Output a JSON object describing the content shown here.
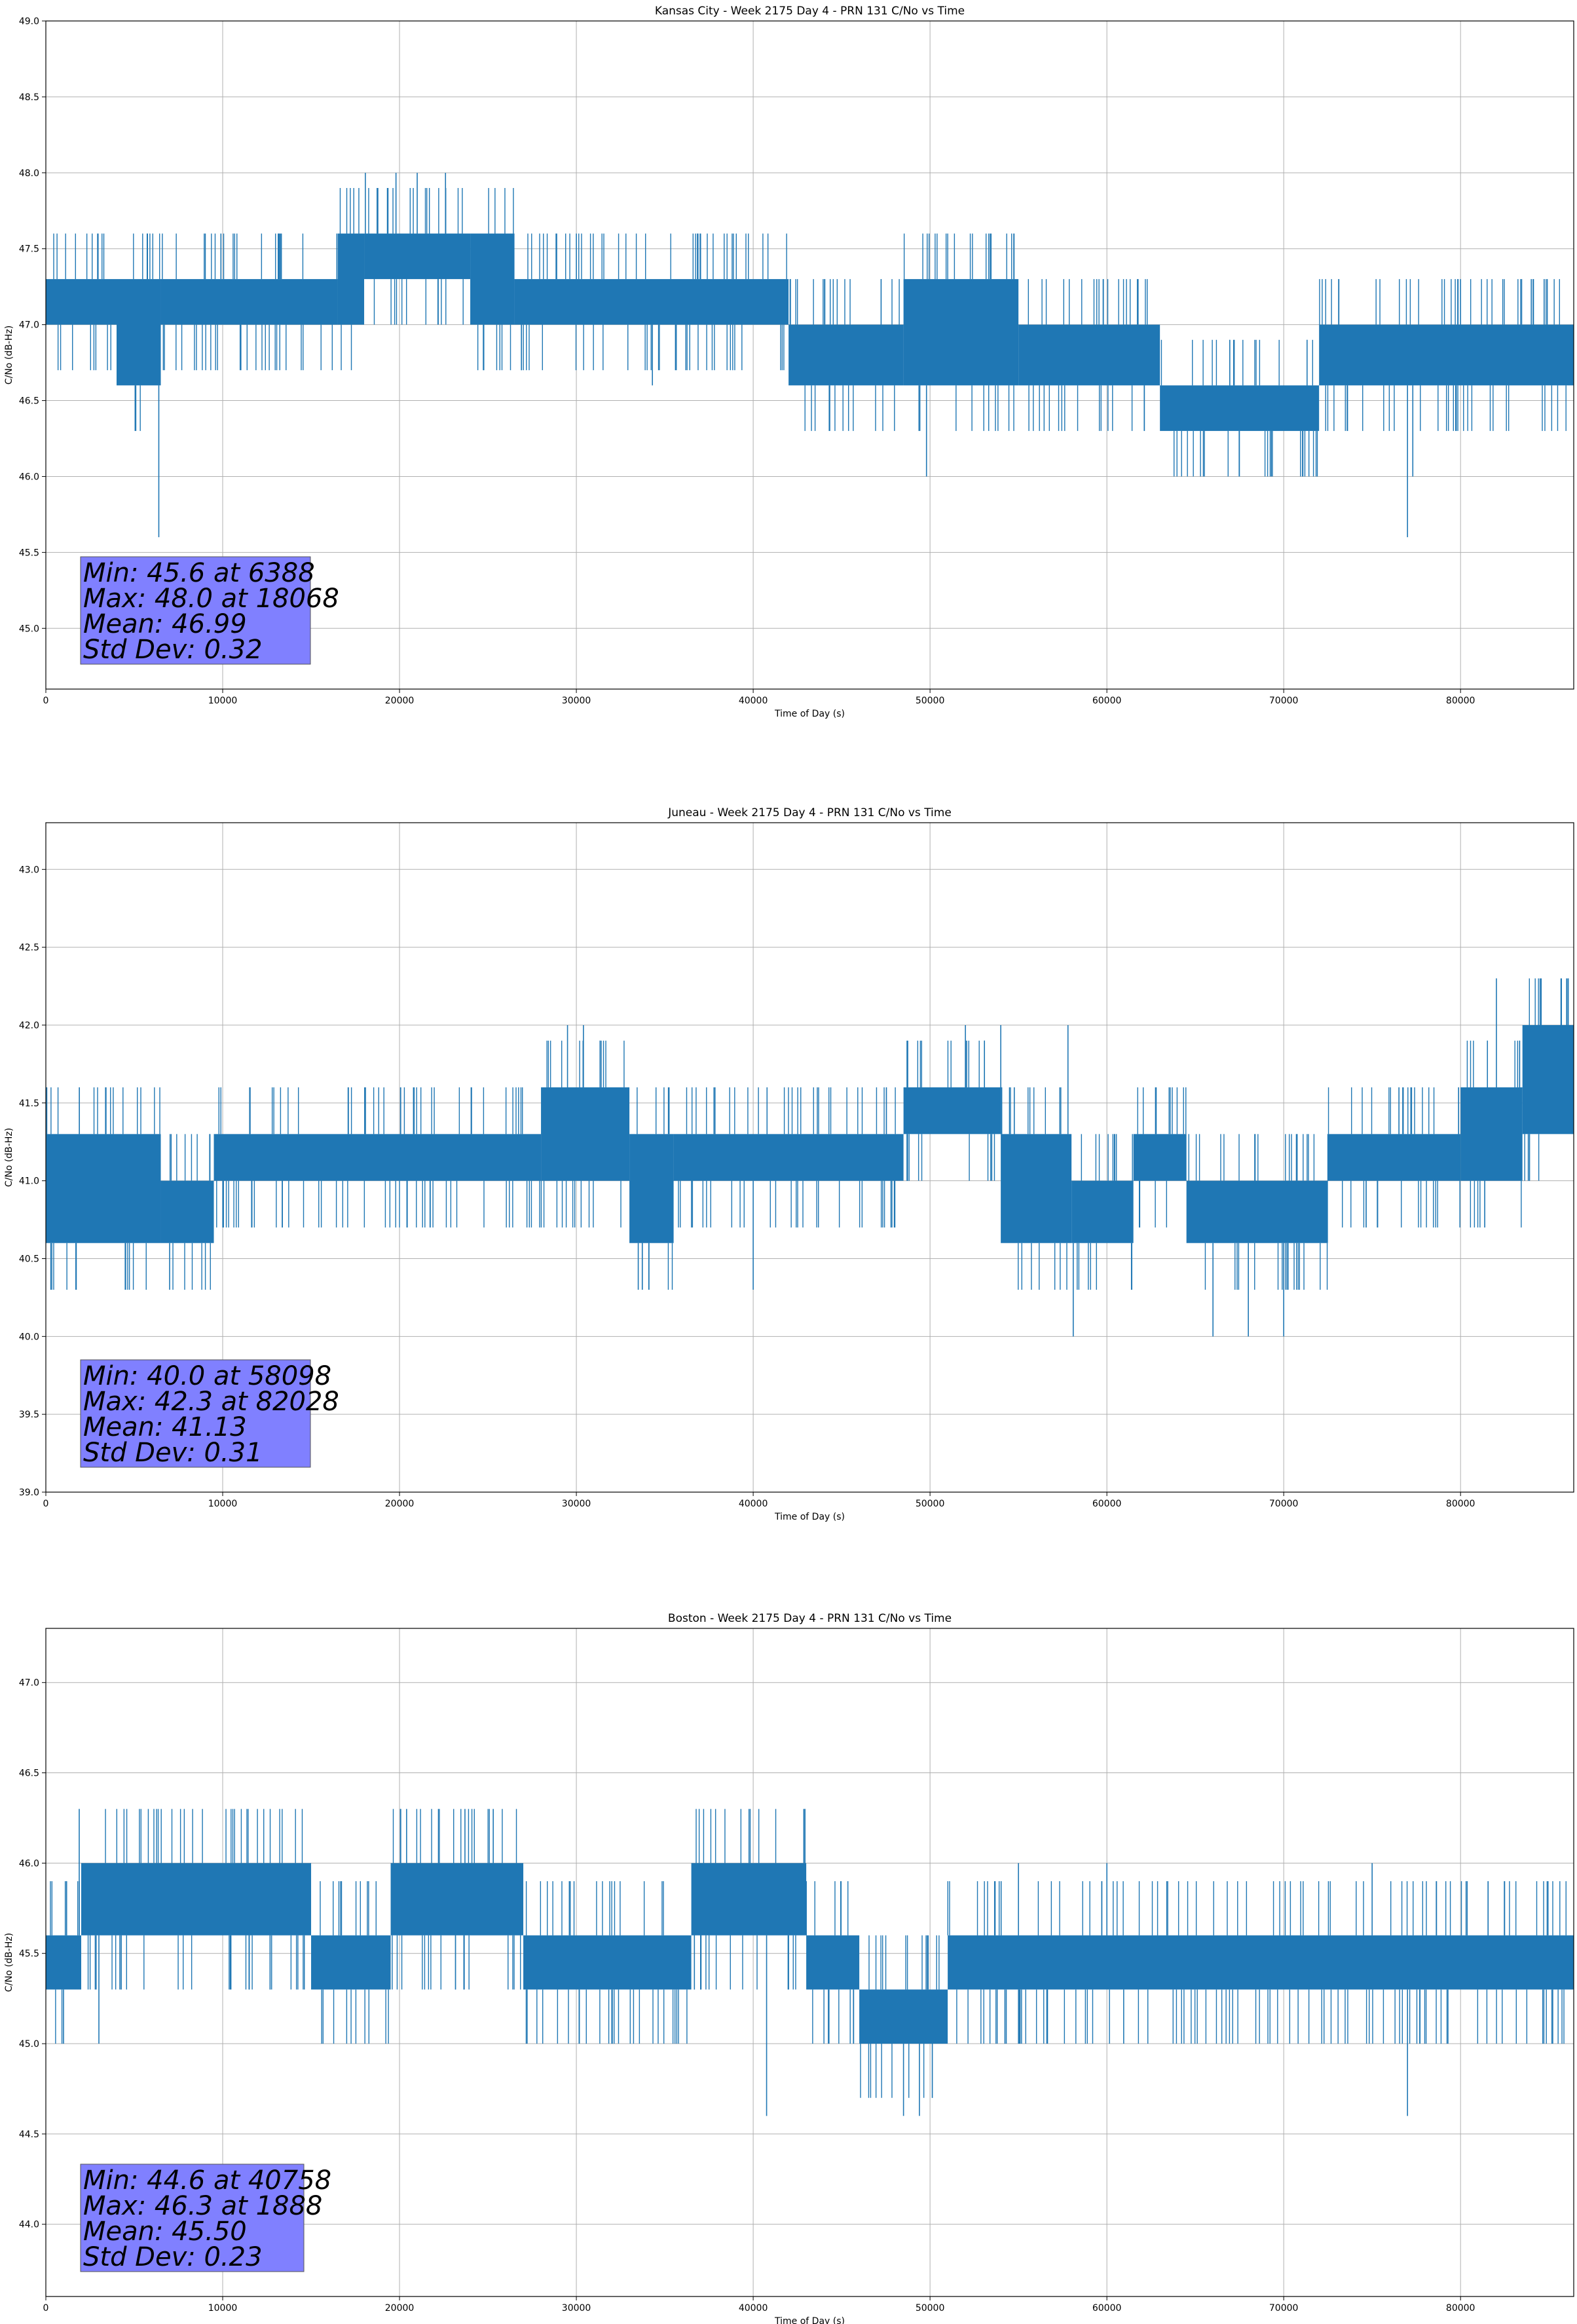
{
  "colors": {
    "series": "#1f77b4",
    "grid": "#b0b0b0",
    "statbox": "#8080ff",
    "axes": "#000000"
  },
  "chart_data": [
    {
      "type": "line",
      "title": "Kansas City - Week 2175 Day 4 - PRN 131 C/No vs Time",
      "xlabel": "Time of Day (s)",
      "ylabel": "C/No (dB-Hz)",
      "xlim": [
        0,
        86400
      ],
      "ylim": [
        44.6,
        49.0
      ],
      "xticks": [
        0,
        10000,
        20000,
        30000,
        40000,
        50000,
        60000,
        70000,
        80000
      ],
      "yticks": [
        45.0,
        45.5,
        46.0,
        46.5,
        47.0,
        47.5,
        48.0,
        48.5,
        49.0
      ],
      "grid": true,
      "stats": {
        "min": "Min: 45.6 at 6388",
        "max": "Max: 48.0 at 18068",
        "mean": "Mean: 46.99",
        "std": "Std Dev: 0.32"
      },
      "bands": [
        {
          "x": [
            0,
            4000
          ],
          "low": 47.0,
          "high": 47.3
        },
        {
          "x": [
            4000,
            6500
          ],
          "low": 46.6,
          "high": 47.3
        },
        {
          "x": [
            6500,
            16500
          ],
          "low": 47.0,
          "high": 47.3
        },
        {
          "x": [
            16500,
            18000
          ],
          "low": 47.0,
          "high": 47.6
        },
        {
          "x": [
            18000,
            24000
          ],
          "low": 47.3,
          "high": 47.6
        },
        {
          "x": [
            24000,
            26500
          ],
          "low": 47.0,
          "high": 47.6
        },
        {
          "x": [
            26500,
            42000
          ],
          "low": 47.0,
          "high": 47.3
        },
        {
          "x": [
            42000,
            48500
          ],
          "low": 46.6,
          "high": 47.0
        },
        {
          "x": [
            48500,
            55000
          ],
          "low": 46.6,
          "high": 47.3
        },
        {
          "x": [
            55000,
            63000
          ],
          "low": 46.6,
          "high": 47.0
        },
        {
          "x": [
            63000,
            72000
          ],
          "low": 46.3,
          "high": 46.6
        },
        {
          "x": [
            72000,
            86400
          ],
          "low": 46.6,
          "high": 47.0
        }
      ],
      "spikes": [
        [
          6388,
          45.6
        ],
        [
          18068,
          48.0
        ],
        [
          19800,
          48.0
        ],
        [
          21000,
          48.0
        ],
        [
          22600,
          48.0
        ],
        [
          9900,
          47.6
        ],
        [
          30000,
          47.6
        ],
        [
          37000,
          47.6
        ],
        [
          49800,
          46.0
        ],
        [
          34300,
          46.6
        ],
        [
          77000,
          45.6
        ],
        [
          77300,
          46.0
        ],
        [
          80000,
          47.3
        ],
        [
          84000,
          47.3
        ]
      ]
    },
    {
      "type": "line",
      "title": "Juneau - Week 2175 Day 4 - PRN 131 C/No vs Time",
      "xlabel": "Time of Day (s)",
      "ylabel": "C/No (dB-Hz)",
      "xlim": [
        0,
        86400
      ],
      "ylim": [
        39.0,
        43.3
      ],
      "xticks": [
        0,
        10000,
        20000,
        30000,
        40000,
        50000,
        60000,
        70000,
        80000
      ],
      "yticks": [
        39.0,
        39.5,
        40.0,
        40.5,
        41.0,
        41.5,
        42.0,
        42.5,
        43.0
      ],
      "grid": true,
      "stats": {
        "min": "Min: 40.0 at 58098",
        "max": "Max: 42.3 at 82028",
        "mean": "Mean: 41.13",
        "std": "Std Dev: 0.31"
      },
      "bands": [
        {
          "x": [
            0,
            4000
          ],
          "low": 40.6,
          "high": 41.3
        },
        {
          "x": [
            4000,
            6500
          ],
          "low": 40.6,
          "high": 41.3
        },
        {
          "x": [
            6500,
            9500
          ],
          "low": 40.6,
          "high": 41.0
        },
        {
          "x": [
            9500,
            28000
          ],
          "low": 41.0,
          "high": 41.3
        },
        {
          "x": [
            28000,
            33000
          ],
          "low": 41.0,
          "high": 41.6
        },
        {
          "x": [
            33000,
            35500
          ],
          "low": 40.6,
          "high": 41.3
        },
        {
          "x": [
            35500,
            48500
          ],
          "low": 41.0,
          "high": 41.3
        },
        {
          "x": [
            48500,
            54000
          ],
          "low": 41.3,
          "high": 41.6
        },
        {
          "x": [
            54000,
            58000
          ],
          "low": 40.6,
          "high": 41.3
        },
        {
          "x": [
            58000,
            61500
          ],
          "low": 40.6,
          "high": 41.0
        },
        {
          "x": [
            61500,
            64500
          ],
          "low": 41.0,
          "high": 41.3
        },
        {
          "x": [
            64500,
            72500
          ],
          "low": 40.6,
          "high": 41.0
        },
        {
          "x": [
            72500,
            80000
          ],
          "low": 41.0,
          "high": 41.3
        },
        {
          "x": [
            80000,
            83500
          ],
          "low": 41.0,
          "high": 41.6
        },
        {
          "x": [
            83500,
            86400
          ],
          "low": 41.3,
          "high": 42.0
        }
      ],
      "spikes": [
        [
          58098,
          40.0
        ],
        [
          82028,
          42.3
        ],
        [
          29500,
          42.0
        ],
        [
          30400,
          42.0
        ],
        [
          52000,
          42.0
        ],
        [
          54000,
          42.0
        ],
        [
          57800,
          42.0
        ],
        [
          66000,
          40.0
        ],
        [
          68000,
          40.0
        ],
        [
          70000,
          40.0
        ],
        [
          7000,
          40.3
        ],
        [
          33500,
          40.3
        ],
        [
          40000,
          40.3
        ],
        [
          84500,
          42.3
        ],
        [
          86000,
          42.3
        ]
      ]
    },
    {
      "type": "line",
      "title": "Boston - Week 2175 Day 4 - PRN 131 C/No vs Time",
      "xlabel": "Time of Day (s)",
      "ylabel": "C/No (dB-Hz)",
      "xlim": [
        0,
        86400
      ],
      "ylim": [
        43.6,
        47.3
      ],
      "xticks": [
        0,
        10000,
        20000,
        30000,
        40000,
        50000,
        60000,
        70000,
        80000
      ],
      "yticks": [
        44.0,
        44.5,
        45.0,
        45.5,
        46.0,
        46.5,
        47.0
      ],
      "grid": true,
      "stats": {
        "min": "Min: 44.6 at 40758",
        "max": "Max: 46.3 at 1888",
        "mean": "Mean: 45.50",
        "std": "Std Dev: 0.23"
      },
      "bands": [
        {
          "x": [
            0,
            2000
          ],
          "low": 45.3,
          "high": 45.6
        },
        {
          "x": [
            2000,
            15000
          ],
          "low": 45.6,
          "high": 46.0
        },
        {
          "x": [
            15000,
            19500
          ],
          "low": 45.3,
          "high": 45.6
        },
        {
          "x": [
            19500,
            27000
          ],
          "low": 45.6,
          "high": 46.0
        },
        {
          "x": [
            27000,
            36500
          ],
          "low": 45.3,
          "high": 45.6
        },
        {
          "x": [
            36500,
            43000
          ],
          "low": 45.6,
          "high": 46.0
        },
        {
          "x": [
            43000,
            46000
          ],
          "low": 45.3,
          "high": 45.6
        },
        {
          "x": [
            46000,
            51000
          ],
          "low": 45.0,
          "high": 45.3
        },
        {
          "x": [
            51000,
            86400
          ],
          "low": 45.3,
          "high": 45.6
        }
      ],
      "spikes": [
        [
          40758,
          44.6
        ],
        [
          1888,
          46.3
        ],
        [
          20400,
          46.3
        ],
        [
          23700,
          46.3
        ],
        [
          25300,
          46.3
        ],
        [
          48500,
          44.6
        ],
        [
          49400,
          44.6
        ],
        [
          77000,
          44.6
        ],
        [
          1000,
          45.0
        ],
        [
          3000,
          45.0
        ],
        [
          75000,
          46.0
        ],
        [
          60000,
          46.0
        ],
        [
          55000,
          46.0
        ]
      ]
    }
  ]
}
